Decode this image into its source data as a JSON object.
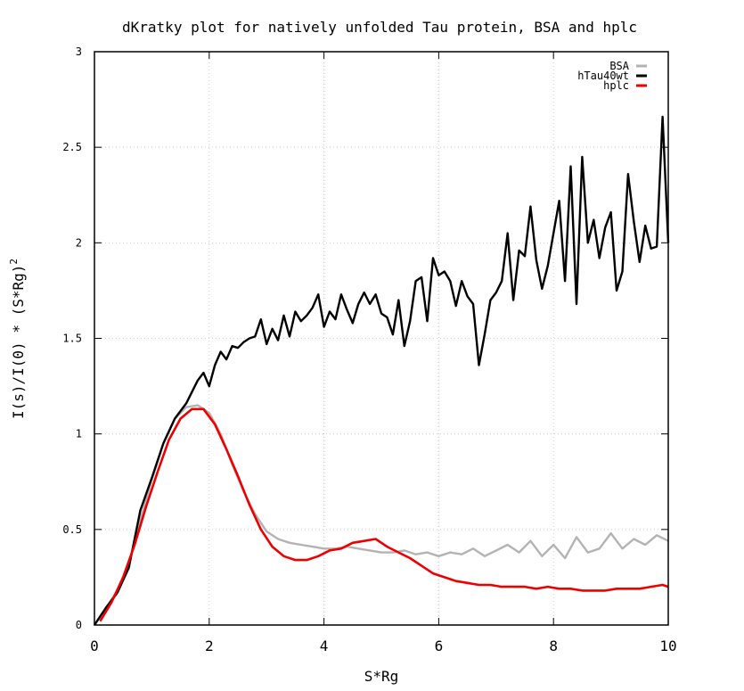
{
  "chart_data": {
    "type": "line",
    "title": "dKratky plot for natively unfolded Tau protein, BSA and hplc",
    "xlabel": "S*Rg",
    "ylabel": "I(s)/I(0) * (S*Rg)",
    "ylabel_superscript": "2",
    "xlim": [
      0,
      10
    ],
    "ylim": [
      0,
      3
    ],
    "xticks": [
      0,
      2,
      4,
      6,
      8,
      10
    ],
    "yticks": [
      0,
      0.5,
      1,
      1.5,
      2,
      2.5,
      3
    ],
    "xtick_labels": [
      "0",
      "2",
      "4",
      "6",
      "8",
      "10"
    ],
    "ytick_labels": [
      "0",
      "0.5",
      "1",
      "1.5",
      "2",
      "2.5",
      "3"
    ],
    "grid": true,
    "legend_position": "top-right",
    "series": [
      {
        "name": "BSA",
        "color": "#b3b3b3",
        "x": [
          0,
          0.2,
          0.4,
          0.6,
          0.8,
          1.0,
          1.2,
          1.4,
          1.6,
          1.8,
          2.0,
          2.2,
          2.4,
          2.6,
          2.8,
          3.0,
          3.2,
          3.4,
          3.6,
          3.8,
          4.0,
          4.2,
          4.4,
          4.6,
          4.8,
          5.0,
          5.2,
          5.4,
          5.6,
          5.8,
          6.0,
          6.2,
          6.4,
          6.6,
          6.8,
          7.0,
          7.2,
          7.4,
          7.6,
          7.8,
          8.0,
          8.2,
          8.4,
          8.6,
          8.8,
          9.0,
          9.2,
          9.4,
          9.6,
          9.8,
          10.0
        ],
        "y": [
          0.0,
          0.09,
          0.18,
          0.32,
          0.55,
          0.76,
          0.95,
          1.08,
          1.14,
          1.15,
          1.11,
          1.0,
          0.84,
          0.7,
          0.58,
          0.49,
          0.45,
          0.43,
          0.42,
          0.41,
          0.4,
          0.4,
          0.41,
          0.4,
          0.39,
          0.38,
          0.38,
          0.39,
          0.37,
          0.38,
          0.36,
          0.38,
          0.37,
          0.4,
          0.36,
          0.39,
          0.42,
          0.38,
          0.44,
          0.36,
          0.42,
          0.35,
          0.46,
          0.38,
          0.4,
          0.48,
          0.4,
          0.45,
          0.42,
          0.47,
          0.44
        ]
      },
      {
        "name": "hTau40wt",
        "color": "#000000",
        "x": [
          0,
          0.2,
          0.4,
          0.6,
          0.8,
          1.0,
          1.2,
          1.4,
          1.6,
          1.8,
          1.9,
          2.0,
          2.1,
          2.2,
          2.3,
          2.4,
          2.5,
          2.6,
          2.7,
          2.8,
          2.9,
          3.0,
          3.1,
          3.2,
          3.3,
          3.4,
          3.5,
          3.6,
          3.7,
          3.8,
          3.9,
          4.0,
          4.1,
          4.2,
          4.3,
          4.4,
          4.5,
          4.6,
          4.7,
          4.8,
          4.9,
          5.0,
          5.1,
          5.2,
          5.3,
          5.4,
          5.5,
          5.6,
          5.7,
          5.8,
          5.9,
          6.0,
          6.1,
          6.2,
          6.3,
          6.4,
          6.5,
          6.6,
          6.7,
          6.8,
          6.9,
          7.0,
          7.1,
          7.2,
          7.3,
          7.4,
          7.5,
          7.6,
          7.7,
          7.8,
          7.9,
          8.0,
          8.1,
          8.2,
          8.3,
          8.4,
          8.5,
          8.6,
          8.7,
          8.8,
          8.9,
          9.0,
          9.1,
          9.2,
          9.3,
          9.4,
          9.5,
          9.6,
          9.7,
          9.8,
          9.9,
          10.0
        ],
        "y": [
          0.0,
          0.09,
          0.17,
          0.3,
          0.6,
          0.77,
          0.95,
          1.08,
          1.16,
          1.28,
          1.32,
          1.25,
          1.36,
          1.43,
          1.39,
          1.46,
          1.45,
          1.48,
          1.5,
          1.51,
          1.6,
          1.47,
          1.55,
          1.49,
          1.62,
          1.51,
          1.64,
          1.59,
          1.62,
          1.66,
          1.73,
          1.56,
          1.64,
          1.6,
          1.73,
          1.65,
          1.58,
          1.68,
          1.74,
          1.68,
          1.73,
          1.63,
          1.61,
          1.52,
          1.7,
          1.46,
          1.59,
          1.8,
          1.82,
          1.59,
          1.92,
          1.83,
          1.85,
          1.8,
          1.67,
          1.8,
          1.72,
          1.68,
          1.36,
          1.52,
          1.7,
          1.74,
          1.8,
          2.05,
          1.7,
          1.96,
          1.93,
          2.19,
          1.91,
          1.76,
          1.88,
          2.05,
          2.22,
          1.8,
          2.4,
          1.68,
          2.45,
          2.0,
          2.12,
          1.92,
          2.08,
          2.16,
          1.75,
          1.85,
          2.36,
          2.11,
          1.9,
          2.09,
          1.97,
          1.98,
          2.66,
          2.0
        ]
      },
      {
        "name": "hplc",
        "color": "#ee0000",
        "x": [
          0.1,
          0.3,
          0.5,
          0.7,
          0.9,
          1.1,
          1.3,
          1.5,
          1.7,
          1.9,
          2.1,
          2.3,
          2.5,
          2.7,
          2.9,
          3.1,
          3.3,
          3.5,
          3.7,
          3.9,
          4.1,
          4.3,
          4.5,
          4.7,
          4.9,
          5.1,
          5.3,
          5.5,
          5.7,
          5.9,
          6.1,
          6.3,
          6.5,
          6.7,
          6.9,
          7.1,
          7.3,
          7.5,
          7.7,
          7.9,
          8.1,
          8.3,
          8.5,
          8.7,
          8.9,
          9.1,
          9.3,
          9.5,
          9.7,
          9.9,
          10.0
        ],
        "y": [
          0.02,
          0.12,
          0.25,
          0.42,
          0.62,
          0.8,
          0.97,
          1.08,
          1.13,
          1.13,
          1.05,
          0.92,
          0.78,
          0.63,
          0.5,
          0.41,
          0.36,
          0.34,
          0.34,
          0.36,
          0.39,
          0.4,
          0.43,
          0.44,
          0.45,
          0.41,
          0.38,
          0.35,
          0.31,
          0.27,
          0.25,
          0.23,
          0.22,
          0.21,
          0.21,
          0.2,
          0.2,
          0.2,
          0.19,
          0.2,
          0.19,
          0.19,
          0.18,
          0.18,
          0.18,
          0.19,
          0.19,
          0.19,
          0.2,
          0.21,
          0.2
        ]
      }
    ]
  }
}
